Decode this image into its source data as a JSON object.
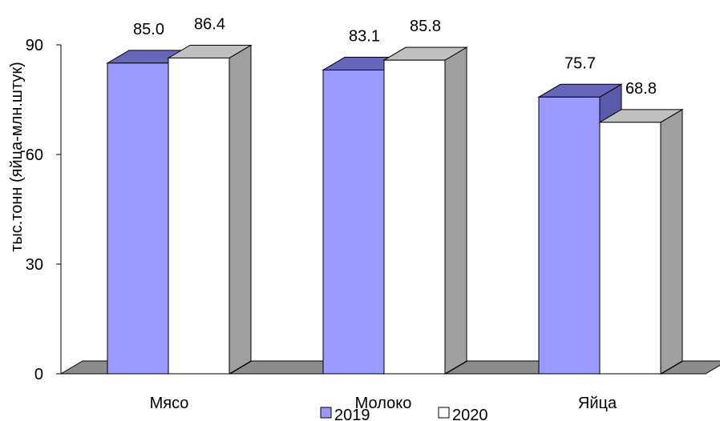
{
  "chart_data": {
    "type": "bar",
    "categories": [
      "Мясо",
      "Молоко",
      "Яйца"
    ],
    "series": [
      {
        "name": "2019",
        "values": [
          85.0,
          83.1,
          75.7
        ],
        "data_labels": [
          "85.0",
          "83.1",
          "75.7"
        ],
        "front_color": "#9999ff",
        "top_color": "#6666bb",
        "side_color": "#5a5aaa"
      },
      {
        "name": "2020",
        "values": [
          86.4,
          85.8,
          68.8
        ],
        "data_labels": [
          "86.4",
          "85.8",
          "68.8"
        ],
        "front_color": "#ffffff",
        "top_color": "#c0c0c0",
        "side_color": "#a0a0a0"
      }
    ],
    "ylabel": "тыс.тонн (яйца-млн.штук)",
    "ylim": [
      0,
      90
    ],
    "yticks": [
      "0",
      "30",
      "60",
      "90"
    ],
    "grid": false,
    "legend": "bottom",
    "floor_color": "#8c8c8c"
  }
}
